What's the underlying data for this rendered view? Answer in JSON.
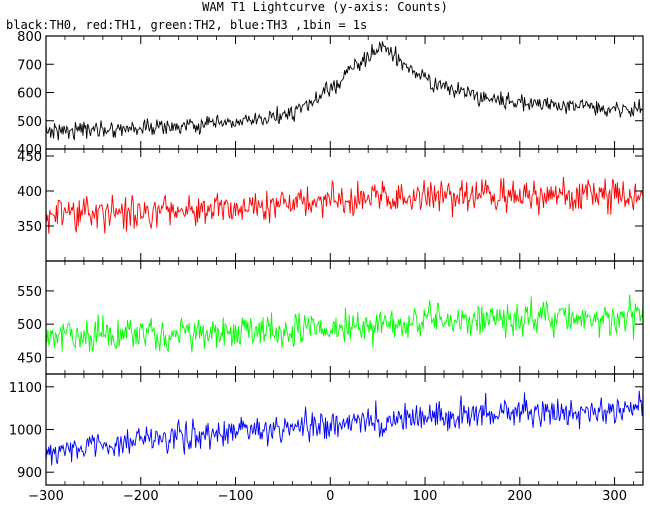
{
  "title": "WAM T1 Lightcurve (y-axis: Counts)",
  "subtitle": "black:TH0, red:TH1, green:TH2, blue:TH3 ,1bin = 1s",
  "chart_data": {
    "type": "line",
    "shared_x": {
      "range": [
        -300,
        330
      ],
      "ticks": [
        -300,
        -200,
        -100,
        0,
        100,
        200,
        300
      ],
      "tick_labels": [
        "−300",
        "−200",
        "−100",
        "0",
        "100",
        "200",
        "300"
      ]
    },
    "bin_seconds": 1,
    "panels": [
      {
        "name": "TH0",
        "color": "#000000",
        "ylim": [
          400,
          800
        ],
        "yticks": [
          400,
          500,
          600,
          700,
          800
        ],
        "profile": {
          "x": [
            -300,
            -150,
            -75,
            -30,
            0,
            25,
            45,
            55,
            65,
            80,
            110,
            150,
            200,
            260,
            330
          ],
          "y": [
            465,
            480,
            500,
            540,
            610,
            690,
            740,
            760,
            740,
            690,
            630,
            590,
            565,
            552,
            540
          ]
        },
        "noise_amplitude": 25
      },
      {
        "name": "TH1",
        "color": "#ff0000",
        "ylim": [
          300,
          460
        ],
        "yticks": [
          350,
          400,
          450
        ],
        "profile": {
          "x": [
            -300,
            -200,
            -100,
            0,
            100,
            200,
            330
          ],
          "y": [
            365,
            372,
            378,
            385,
            392,
            392,
            393
          ]
        },
        "noise_amplitude": 20
      },
      {
        "name": "TH2",
        "color": "#00ff00",
        "ylim": [
          425,
          595
        ],
        "yticks": [
          450,
          500,
          550
        ],
        "profile": {
          "x": [
            -300,
            -200,
            -100,
            0,
            100,
            200,
            330
          ],
          "y": [
            480,
            483,
            488,
            495,
            505,
            508,
            510
          ]
        },
        "noise_amplitude": 22
      },
      {
        "name": "TH3",
        "color": "#0000ff",
        "ylim": [
          870,
          1130
        ],
        "yticks": [
          900,
          1000,
          1100
        ],
        "profile": {
          "x": [
            -300,
            -200,
            -100,
            0,
            100,
            200,
            330
          ],
          "y": [
            950,
            975,
            995,
            1010,
            1030,
            1040,
            1045
          ]
        },
        "noise_amplitude": 30
      }
    ]
  }
}
